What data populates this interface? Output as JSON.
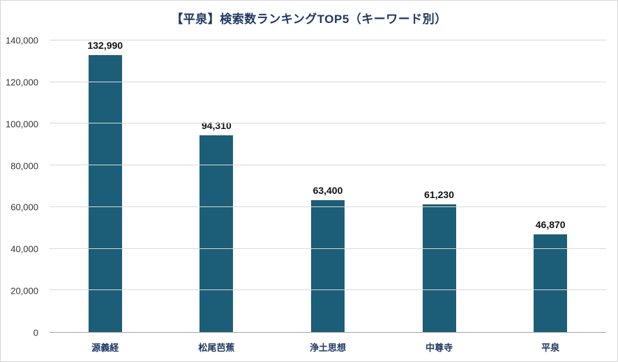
{
  "chart": {
    "title": "【平泉】検索数ランキングTOP5（キーワード別）"
  },
  "chart_data": {
    "type": "bar",
    "title": "【平泉】検索数ランキングTOP5（キーワード別）",
    "categories": [
      "源義経",
      "松尾芭蕉",
      "浄土思想",
      "中尊寺",
      "平泉"
    ],
    "values": [
      132990,
      94310,
      63400,
      61230,
      46870
    ],
    "value_labels": [
      "132,990",
      "94,310",
      "63,400",
      "61,230",
      "46,870"
    ],
    "xlabel": "",
    "ylabel": "",
    "ylim": [
      0,
      140000
    ],
    "yticks": [
      0,
      20000,
      40000,
      60000,
      80000,
      100000,
      120000,
      140000
    ],
    "ytick_labels": [
      "0",
      "20,000",
      "40,000",
      "60,000",
      "80,000",
      "100,000",
      "120,000",
      "140,000"
    ],
    "grid": true,
    "legend": false,
    "colors": {
      "bar": "#1c5d77",
      "title": "#1f3864",
      "category_label": "#1f3864",
      "value_label": "#111111",
      "gridline": "#d9d9d9",
      "axis_line": "#a3a3a3",
      "ytick_label": "#333333"
    }
  }
}
